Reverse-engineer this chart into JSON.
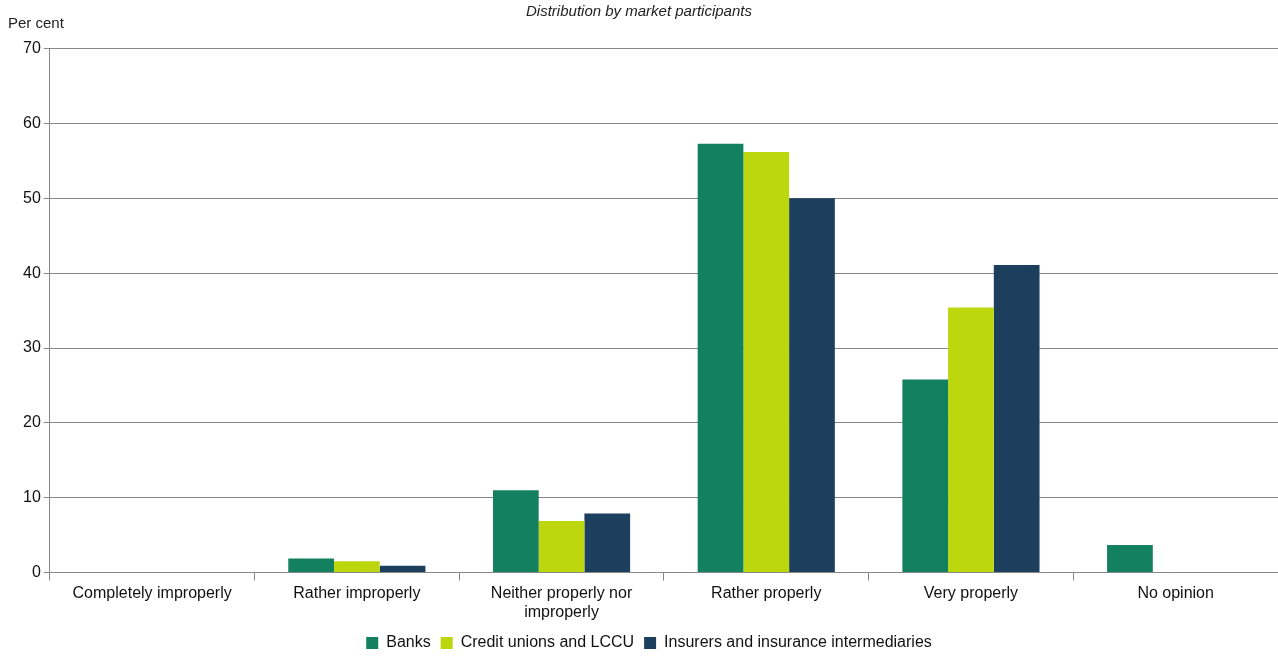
{
  "chart_data": {
    "type": "bar",
    "title": "Distribution by market participants",
    "ylabel": "Per cent",
    "categories": [
      "Completely improperly",
      "Rather improperly",
      "Neither properly nor improperly",
      "Rather properly",
      "Very properly",
      "No opinion"
    ],
    "series": [
      {
        "name": "Banks",
        "color": "#13805f",
        "values": [
          0,
          1.9,
          11.0,
          57.3,
          25.8,
          3.7
        ]
      },
      {
        "name": "Credit unions and LCCU",
        "color": "#bcd70e",
        "values": [
          0,
          1.5,
          6.9,
          56.2,
          35.4,
          0
        ]
      },
      {
        "name": "Insurers and insurance intermediaries",
        "color": "#1c3f5e",
        "values": [
          0,
          0.9,
          7.9,
          50.0,
          41.1,
          0
        ]
      }
    ],
    "ylim": [
      0,
      70
    ],
    "yticks": [
      0,
      10,
      20,
      30,
      40,
      50,
      60,
      70
    ],
    "grid": "y",
    "legend": "bottom"
  }
}
